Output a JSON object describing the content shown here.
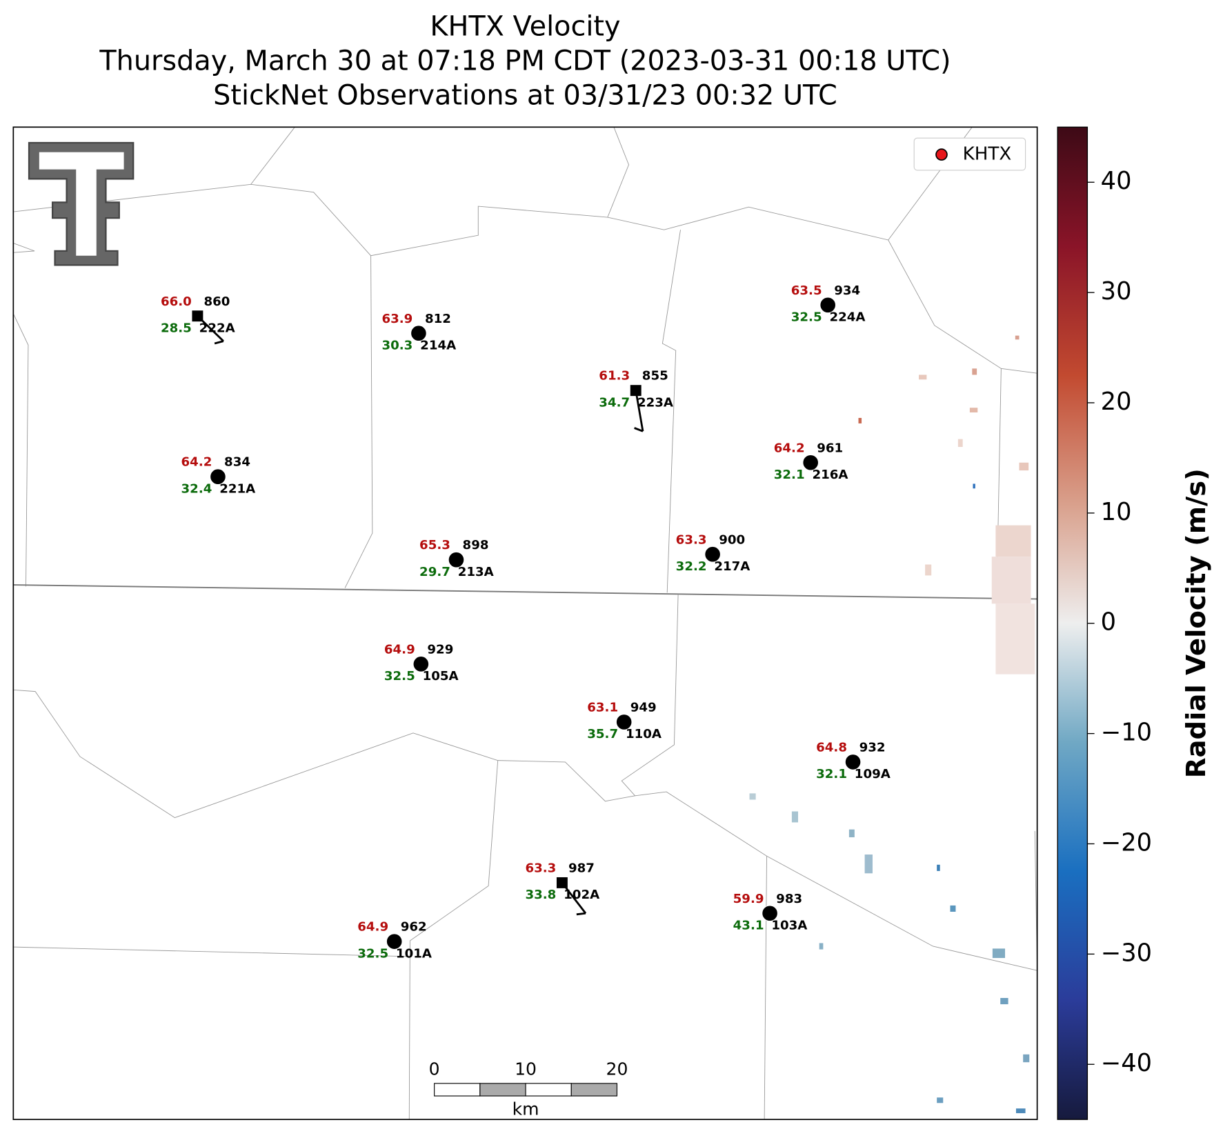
{
  "title": [
    "KHTX Velocity",
    "Thursday, March 30 at 07:18 PM CDT (2023-03-31 00:18 UTC)",
    "StickNet Observations at 03/31/23 00:32 UTC"
  ],
  "legend": [
    "KHTX"
  ],
  "colorbar": {
    "label": "Radial Velocity (m/s)",
    "vlim": [
      -45,
      45
    ],
    "ticks": [
      {
        "value": -40,
        "label": "−40"
      },
      {
        "value": -30,
        "label": "−30"
      },
      {
        "value": -20,
        "label": "−20"
      },
      {
        "value": -10,
        "label": "−10"
      },
      0,
      10,
      20,
      30,
      40
    ]
  },
  "scale_bar": {
    "ticks": [
      0,
      10,
      20
    ],
    "unit": "km"
  },
  "stations": [
    {
      "id": "222A",
      "temperature": "66.0",
      "dewpoint": "28.5",
      "pressure": "860"
    },
    {
      "id": "214A",
      "temperature": "63.9",
      "dewpoint": "30.3",
      "pressure": "812"
    },
    {
      "id": "223A",
      "temperature": "61.3",
      "dewpoint": "34.7",
      "pressure": "855"
    },
    {
      "id": "224A",
      "temperature": "63.5",
      "dewpoint": "32.5",
      "pressure": "934"
    },
    {
      "id": "221A",
      "temperature": "64.2",
      "dewpoint": "32.4",
      "pressure": "834"
    },
    {
      "id": "216A",
      "temperature": "64.2",
      "dewpoint": "32.1",
      "pressure": "961"
    },
    {
      "id": "213A",
      "temperature": "65.3",
      "dewpoint": "29.7",
      "pressure": "898"
    },
    {
      "id": "217A",
      "temperature": "63.3",
      "dewpoint": "32.2",
      "pressure": "900"
    },
    {
      "id": "105A",
      "temperature": "64.9",
      "dewpoint": "32.5",
      "pressure": "929"
    },
    {
      "id": "110A",
      "temperature": "63.1",
      "dewpoint": "35.7",
      "pressure": "949"
    },
    {
      "id": "109A",
      "temperature": "64.8",
      "dewpoint": "32.1",
      "pressure": "932"
    },
    {
      "id": "102A",
      "temperature": "63.3",
      "dewpoint": "33.8",
      "pressure": "987"
    },
    {
      "id": "103A",
      "temperature": "59.9",
      "dewpoint": "43.1",
      "pressure": "983"
    },
    {
      "id": "101A",
      "temperature": "64.9",
      "dewpoint": "32.5",
      "pressure": "962"
    }
  ]
}
